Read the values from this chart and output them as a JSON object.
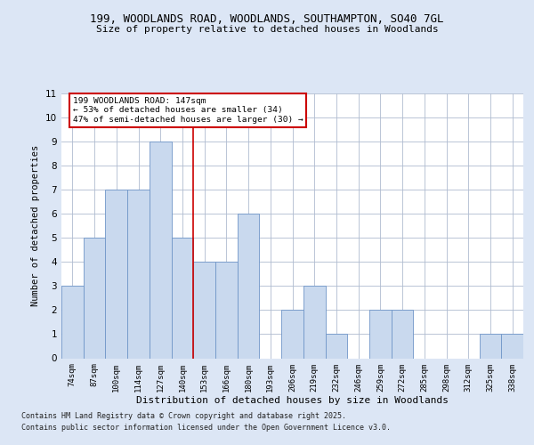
{
  "title1": "199, WOODLANDS ROAD, WOODLANDS, SOUTHAMPTON, SO40 7GL",
  "title2": "Size of property relative to detached houses in Woodlands",
  "xlabel": "Distribution of detached houses by size in Woodlands",
  "ylabel": "Number of detached properties",
  "categories": [
    "74sqm",
    "87sqm",
    "100sqm",
    "114sqm",
    "127sqm",
    "140sqm",
    "153sqm",
    "166sqm",
    "180sqm",
    "193sqm",
    "206sqm",
    "219sqm",
    "232sqm",
    "246sqm",
    "259sqm",
    "272sqm",
    "285sqm",
    "298sqm",
    "312sqm",
    "325sqm",
    "338sqm"
  ],
  "values": [
    3,
    5,
    7,
    7,
    9,
    5,
    4,
    4,
    6,
    0,
    2,
    3,
    1,
    0,
    2,
    2,
    0,
    0,
    0,
    1,
    1
  ],
  "bar_color": "#c9d9ee",
  "bar_edge_color": "#7096c8",
  "vline_x": 5.5,
  "vline_color": "#cc0000",
  "annotation_title": "199 WOODLANDS ROAD: 147sqm",
  "annotation_line1": "← 53% of detached houses are smaller (34)",
  "annotation_line2": "47% of semi-detached houses are larger (30) →",
  "annotation_box_color": "#ffffff",
  "annotation_box_edge": "#cc0000",
  "ylim": [
    0,
    11
  ],
  "yticks": [
    0,
    1,
    2,
    3,
    4,
    5,
    6,
    7,
    8,
    9,
    10,
    11
  ],
  "footer1": "Contains HM Land Registry data © Crown copyright and database right 2025.",
  "footer2": "Contains public sector information licensed under the Open Government Licence v3.0.",
  "bg_color": "#dce6f5",
  "plot_bg_color": "#ffffff"
}
